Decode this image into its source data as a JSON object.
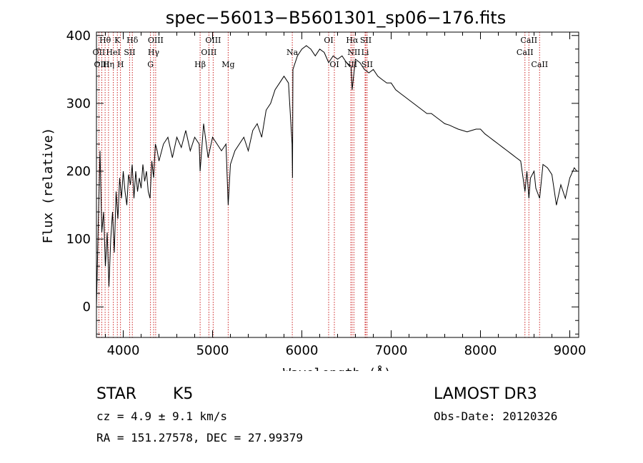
{
  "chart_data": {
    "type": "line",
    "title": "spec−56013−B5601301_sp06−176.fits",
    "xlabel": "Wavelength (Å)",
    "ylabel": "Flux (relative)",
    "xlim": [
      3700,
      9100
    ],
    "ylim": [
      -45,
      405
    ],
    "xticks": [
      4000,
      5000,
      6000,
      7000,
      8000,
      9000
    ],
    "yticks": [
      0,
      100,
      200,
      300,
      400
    ],
    "grid": false,
    "series": [
      {
        "x": [
          3700,
          3720,
          3740,
          3760,
          3780,
          3800,
          3820,
          3840,
          3860,
          3880,
          3900,
          3920,
          3940,
          3960,
          3980,
          4000,
          4020,
          4040,
          4060,
          4080,
          4100,
          4120,
          4140,
          4160,
          4180,
          4200,
          4220,
          4240,
          4260,
          4280,
          4300,
          4320,
          4340,
          4360,
          4380,
          4400,
          4450,
          4500,
          4550,
          4600,
          4650,
          4700,
          4750,
          4800,
          4850,
          4861,
          4900,
          4950,
          5000,
          5050,
          5100,
          5150,
          5175,
          5200,
          5250,
          5300,
          5350,
          5400,
          5450,
          5500,
          5550,
          5600,
          5650,
          5700,
          5750,
          5800,
          5850,
          5890,
          5895,
          5900,
          5950,
          6000,
          6050,
          6100,
          6150,
          6200,
          6250,
          6300,
          6350,
          6400,
          6450,
          6500,
          6550,
          6563,
          6600,
          6650,
          6700,
          6750,
          6800,
          6850,
          6900,
          6950,
          7000,
          7050,
          7100,
          7150,
          7200,
          7250,
          7300,
          7350,
          7400,
          7450,
          7500,
          7550,
          7600,
          7650,
          7700,
          7750,
          7800,
          7850,
          7900,
          7950,
          8000,
          8050,
          8100,
          8150,
          8200,
          8250,
          8300,
          8350,
          8400,
          8450,
          8498,
          8520,
          8542,
          8560,
          8600,
          8620,
          8662,
          8700,
          8750,
          8800,
          8850,
          8900,
          8950,
          9000,
          9050,
          9080
        ],
        "y": [
          0,
          120,
          230,
          110,
          140,
          60,
          110,
          30,
          100,
          140,
          80,
          170,
          130,
          190,
          160,
          200,
          170,
          150,
          195,
          180,
          210,
          160,
          200,
          170,
          190,
          175,
          210,
          185,
          200,
          170,
          160,
          215,
          190,
          240,
          230,
          215,
          240,
          250,
          220,
          250,
          235,
          260,
          230,
          250,
          240,
          200,
          270,
          220,
          250,
          240,
          230,
          240,
          150,
          210,
          230,
          240,
          250,
          230,
          260,
          270,
          250,
          290,
          300,
          320,
          330,
          340,
          330,
          240,
          190,
          350,
          370,
          380,
          385,
          380,
          370,
          380,
          375,
          360,
          370,
          365,
          370,
          360,
          355,
          320,
          365,
          360,
          350,
          345,
          350,
          340,
          335,
          330,
          330,
          320,
          315,
          310,
          305,
          300,
          295,
          290,
          285,
          285,
          280,
          275,
          270,
          268,
          265,
          262,
          260,
          258,
          260,
          262,
          262,
          255,
          250,
          245,
          240,
          235,
          230,
          225,
          220,
          215,
          170,
          200,
          160,
          190,
          200,
          175,
          160,
          210,
          205,
          195,
          150,
          180,
          160,
          190,
          205,
          200
        ]
      }
    ],
    "lines": [
      {
        "name": "Hθ",
        "wl": 3797,
        "row": 0
      },
      {
        "name": "OII",
        "wl": 3727,
        "row": 1
      },
      {
        "name": "OIII",
        "wl": 3760,
        "row": 2
      },
      {
        "name": "Hη",
        "wl": 3835,
        "row": 2
      },
      {
        "name": "HeI",
        "wl": 3889,
        "row": 1
      },
      {
        "name": "K",
        "wl": 3934,
        "row": 0
      },
      {
        "name": "SII",
        "wl": 4072,
        "row": 1
      },
      {
        "name": "H",
        "wl": 3969,
        "row": 2
      },
      {
        "name": "Hδ",
        "wl": 4102,
        "row": 0
      },
      {
        "name": "OIII",
        "wl": 4363,
        "row": 0
      },
      {
        "name": "Hγ",
        "wl": 4340,
        "row": 1
      },
      {
        "name": "G",
        "wl": 4305,
        "row": 2
      },
      {
        "name": "OIII",
        "wl": 5007,
        "row": 0
      },
      {
        "name": "OIII",
        "wl": 4959,
        "row": 1
      },
      {
        "name": "Hβ",
        "wl": 4861,
        "row": 2
      },
      {
        "name": "Mg",
        "wl": 5175,
        "row": 2
      },
      {
        "name": "Na",
        "wl": 5893,
        "row": 1
      },
      {
        "name": "OI",
        "wl": 6300,
        "row": 0
      },
      {
        "name": "OI",
        "wl": 6364,
        "row": 2
      },
      {
        "name": "Hα",
        "wl": 6563,
        "row": 0
      },
      {
        "name": "SII",
        "wl": 6716,
        "row": 0
      },
      {
        "name": "NII",
        "wl": 6583,
        "row": 1
      },
      {
        "name": "Li",
        "wl": 6708,
        "row": 1
      },
      {
        "name": "NII",
        "wl": 6548,
        "row": 2
      },
      {
        "name": "SII",
        "wl": 6731,
        "row": 2
      },
      {
        "name": "CaII",
        "wl": 8542,
        "row": 0
      },
      {
        "name": "CaII",
        "wl": 8498,
        "row": 1
      },
      {
        "name": "CaII",
        "wl": 8662,
        "row": 2
      }
    ]
  },
  "info": {
    "class": "STAR",
    "subclass": "K5",
    "survey": "LAMOST DR3",
    "cz": "cz = 4.9 ± 9.1 km/s",
    "obs_date": "Obs-Date: 20120326",
    "coords": "RA = 151.27578, DEC =  27.99379"
  }
}
